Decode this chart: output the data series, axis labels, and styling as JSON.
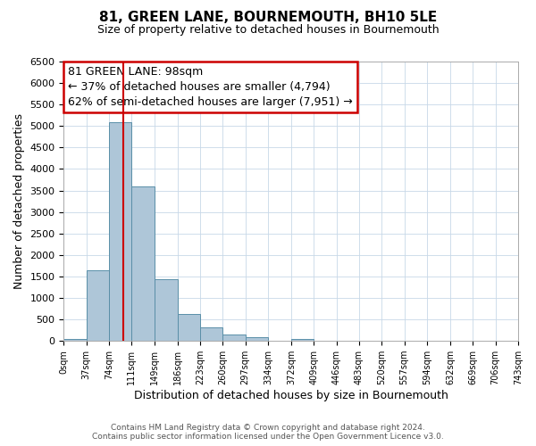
{
  "title": "81, GREEN LANE, BOURNEMOUTH, BH10 5LE",
  "subtitle": "Size of property relative to detached houses in Bournemouth",
  "xlabel": "Distribution of detached houses by size in Bournemouth",
  "ylabel": "Number of detached properties",
  "bin_edges": [
    0,
    37,
    74,
    111,
    149,
    186,
    223,
    260,
    297,
    334,
    372,
    409,
    446,
    483,
    520,
    557,
    594,
    632,
    669,
    706,
    743
  ],
  "bin_counts": [
    50,
    1650,
    5080,
    3600,
    1430,
    620,
    310,
    145,
    90,
    0,
    55,
    0,
    0,
    0,
    0,
    0,
    0,
    0,
    0,
    0
  ],
  "bar_color": "#aec6d8",
  "bar_edge_color": "#5a8fa8",
  "property_size": 98,
  "vline_color": "#cc0000",
  "annotation_line1": "81 GREEN LANE: 98sqm",
  "annotation_line2": "← 37% of detached houses are smaller (4,794)",
  "annotation_line3": "62% of semi-detached houses are larger (7,951) →",
  "annotation_box_color": "#ffffff",
  "annotation_box_edge_color": "#cc0000",
  "xlim_left": 0,
  "xlim_right": 743,
  "ylim_top": 6500,
  "tick_labels": [
    "0sqm",
    "37sqm",
    "74sqm",
    "111sqm",
    "149sqm",
    "186sqm",
    "223sqm",
    "260sqm",
    "297sqm",
    "334sqm",
    "372sqm",
    "409sqm",
    "446sqm",
    "483sqm",
    "520sqm",
    "557sqm",
    "594sqm",
    "632sqm",
    "669sqm",
    "706sqm",
    "743sqm"
  ],
  "yticks": [
    0,
    500,
    1000,
    1500,
    2000,
    2500,
    3000,
    3500,
    4000,
    4500,
    5000,
    5500,
    6000,
    6500
  ],
  "footer_line1": "Contains HM Land Registry data © Crown copyright and database right 2024.",
  "footer_line2": "Contains public sector information licensed under the Open Government Licence v3.0.",
  "background_color": "#ffffff",
  "grid_color": "#c8d8e8",
  "title_fontsize": 11,
  "subtitle_fontsize": 9,
  "xlabel_fontsize": 9,
  "ylabel_fontsize": 9,
  "xtick_fontsize": 7,
  "ytick_fontsize": 8,
  "annotation_fontsize": 9,
  "footer_fontsize": 6.5
}
